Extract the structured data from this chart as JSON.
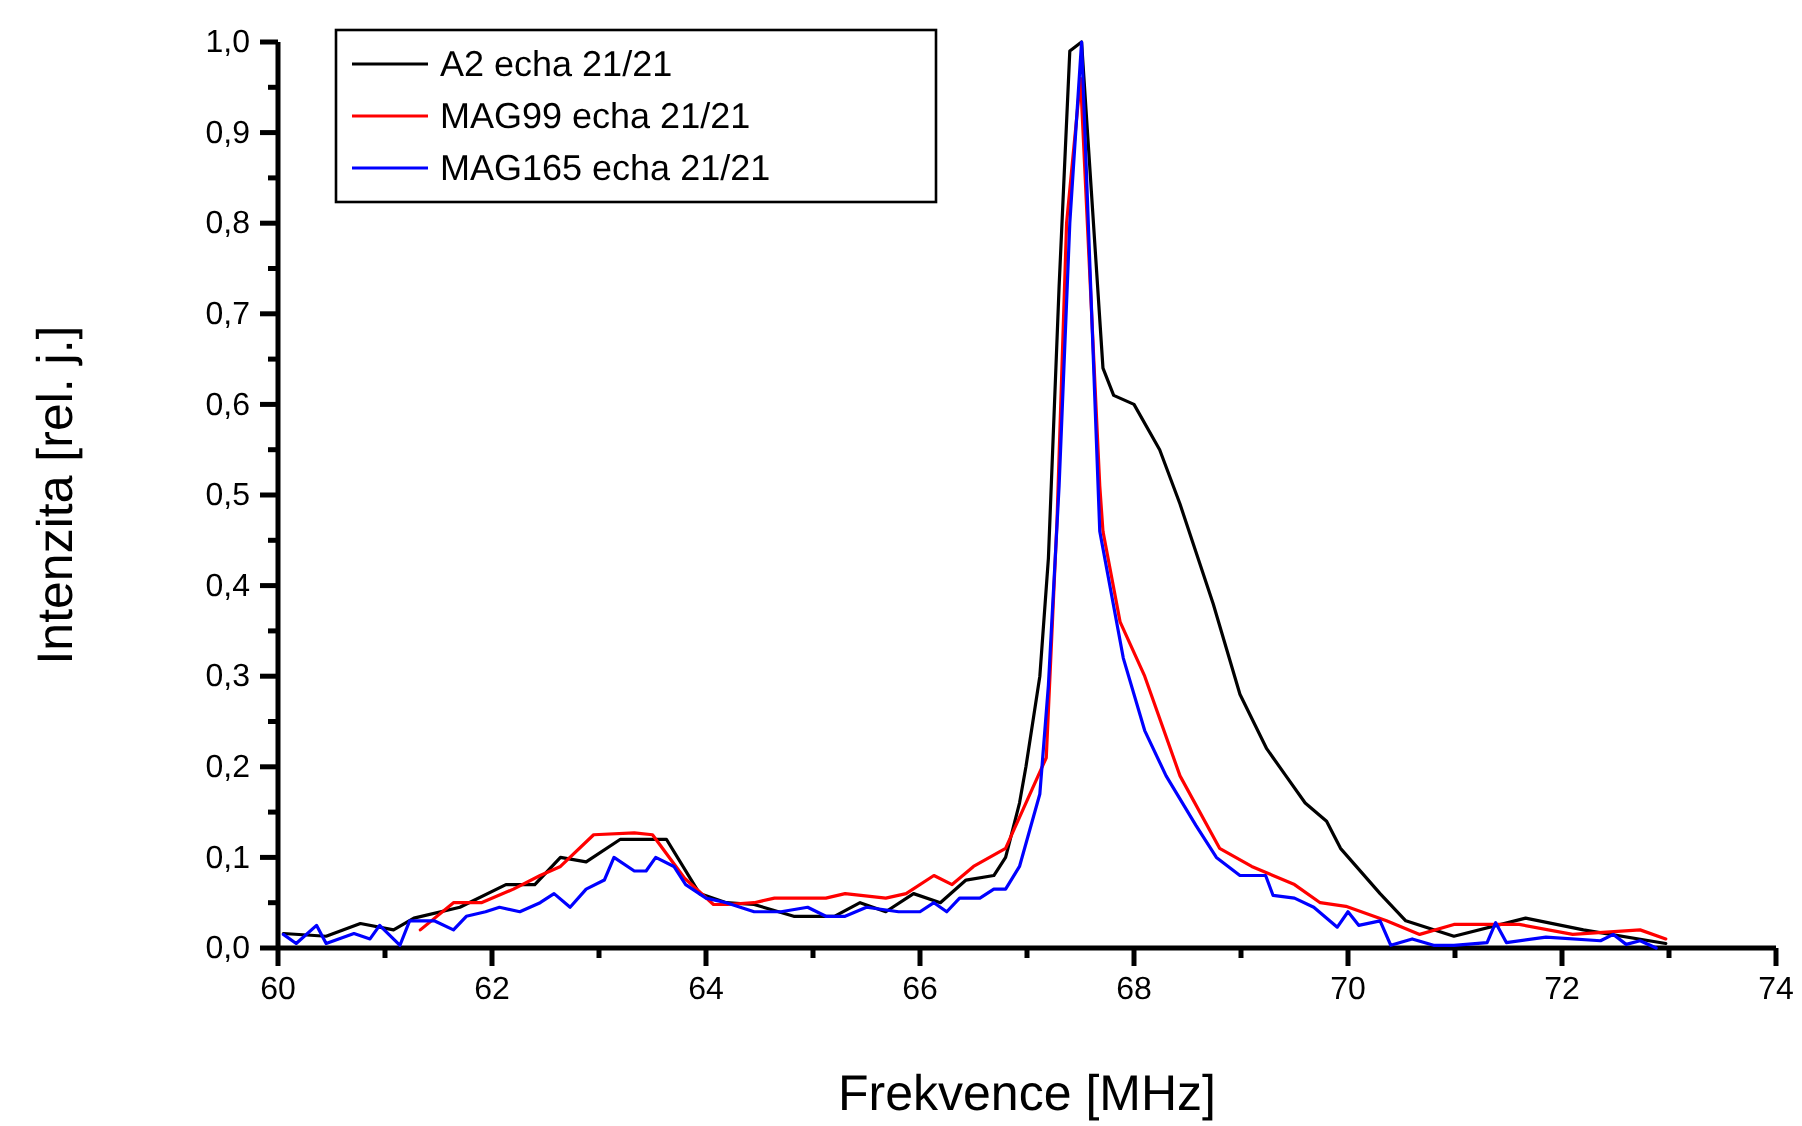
{
  "chart_data": {
    "type": "line",
    "xlabel": "Frekvence [MHz]",
    "ylabel": "Intenzita [rel. j.]",
    "xlim": [
      60,
      74
    ],
    "ylim": [
      0,
      1.0
    ],
    "xticks": [
      60,
      {
        "value": 61,
        "label": null
      },
      62,
      {
        "value": 63,
        "label": null
      },
      64,
      {
        "value": 65,
        "label": null
      },
      66,
      {
        "value": 67,
        "label": null
      },
      68,
      {
        "value": 69,
        "label": null
      },
      70,
      {
        "value": 71,
        "label": null
      },
      72,
      {
        "value": 73,
        "label": null
      },
      74
    ],
    "yticks": [
      {
        "value": 0,
        "label": "0,0"
      },
      {
        "value": 0.05,
        "label": null
      },
      {
        "value": 0.1,
        "label": "0,1"
      },
      {
        "value": 0.15,
        "label": null
      },
      {
        "value": 0.2,
        "label": "0,2"
      },
      {
        "value": 0.25,
        "label": null
      },
      {
        "value": 0.3,
        "label": "0,3"
      },
      {
        "value": 0.35,
        "label": null
      },
      {
        "value": 0.4,
        "label": "0,4"
      },
      {
        "value": 0.45,
        "label": null
      },
      {
        "value": 0.5,
        "label": "0,5"
      },
      {
        "value": 0.55,
        "label": null
      },
      {
        "value": 0.6,
        "label": "0,6"
      },
      {
        "value": 0.65,
        "label": null
      },
      {
        "value": 0.7,
        "label": "0,7"
      },
      {
        "value": 0.75,
        "label": null
      },
      {
        "value": 0.8,
        "label": "0,8"
      },
      {
        "value": 0.85,
        "label": null
      },
      {
        "value": 0.9,
        "label": "0,9"
      },
      {
        "value": 0.95,
        "label": null
      },
      {
        "value": 1.0,
        "label": "1,0"
      }
    ],
    "grid": false,
    "legend": "top left",
    "marker": "none",
    "line_style": "solid",
    "series": [
      {
        "name": "A2 echa 21/21",
        "color": "#000000",
        "x": [
          60.05,
          60.45,
          60.77,
          61.08,
          61.27,
          61.7,
          62.13,
          62.4,
          62.64,
          62.88,
          63.2,
          63.63,
          63.94,
          64.19,
          64.45,
          64.82,
          65.2,
          65.44,
          65.68,
          65.94,
          66.19,
          66.43,
          66.69,
          66.8,
          66.93,
          66.99,
          67.12,
          67.2,
          67.3,
          67.4,
          67.51,
          67.71,
          67.81,
          68.0,
          68.24,
          68.43,
          68.74,
          68.99,
          69.24,
          69.42,
          69.6,
          69.8,
          69.93,
          70.3,
          70.54,
          70.99,
          71.66,
          72.2,
          72.97
        ],
        "values": [
          0.016,
          0.013,
          0.027,
          0.02,
          0.033,
          0.045,
          0.07,
          0.07,
          0.1,
          0.095,
          0.12,
          0.12,
          0.06,
          0.05,
          0.048,
          0.035,
          0.035,
          0.05,
          0.04,
          0.06,
          0.05,
          0.075,
          0.08,
          0.1,
          0.16,
          0.2,
          0.3,
          0.43,
          0.73,
          0.99,
          1.0,
          0.64,
          0.61,
          0.6,
          0.55,
          0.49,
          0.38,
          0.28,
          0.22,
          0.19,
          0.16,
          0.14,
          0.11,
          0.06,
          0.03,
          0.013,
          0.033,
          0.02,
          0.005
        ]
      },
      {
        "name": "MAG99 echa 21/21",
        "color": "#ff0000",
        "x": [
          61.33,
          61.64,
          61.9,
          62.2,
          62.45,
          62.64,
          62.95,
          63.33,
          63.5,
          63.8,
          64.07,
          64.2,
          64.45,
          64.64,
          65.12,
          65.3,
          65.68,
          65.87,
          66.13,
          66.3,
          66.5,
          66.8,
          67.18,
          67.28,
          67.37,
          67.5,
          67.68,
          67.71,
          67.87,
          68.1,
          68.43,
          68.8,
          69.1,
          69.5,
          69.74,
          69.98,
          70.36,
          70.67,
          70.99,
          71.6,
          72.1,
          72.73,
          72.97
        ],
        "values": [
          0.02,
          0.05,
          0.05,
          0.065,
          0.08,
          0.09,
          0.125,
          0.127,
          0.125,
          0.077,
          0.048,
          0.048,
          0.05,
          0.055,
          0.055,
          0.06,
          0.055,
          0.06,
          0.08,
          0.07,
          0.09,
          0.11,
          0.21,
          0.47,
          0.8,
          0.96,
          0.51,
          0.46,
          0.36,
          0.3,
          0.19,
          0.11,
          0.09,
          0.07,
          0.05,
          0.046,
          0.03,
          0.015,
          0.026,
          0.026,
          0.015,
          0.02,
          0.01
        ]
      },
      {
        "name": "MAG165 echa 21/21",
        "color": "#0000ff",
        "x": [
          60.05,
          60.17,
          60.36,
          60.45,
          60.71,
          60.86,
          60.95,
          61.14,
          61.23,
          61.46,
          61.64,
          61.76,
          61.94,
          62.07,
          62.26,
          62.45,
          62.58,
          62.73,
          62.88,
          63.05,
          63.14,
          63.33,
          63.44,
          63.53,
          63.7,
          63.81,
          64.0,
          64.19,
          64.45,
          64.7,
          64.95,
          65.12,
          65.3,
          65.5,
          65.8,
          66.0,
          66.13,
          66.25,
          66.37,
          66.56,
          66.69,
          66.8,
          66.93,
          67.12,
          67.2,
          67.3,
          67.4,
          67.51,
          67.68,
          67.9,
          68.1,
          68.3,
          68.58,
          68.77,
          68.99,
          69.23,
          69.3,
          69.5,
          69.68,
          69.9,
          70.0,
          70.1,
          70.3,
          70.4,
          70.6,
          70.8,
          70.99,
          71.3,
          71.38,
          71.48,
          71.85,
          72.36,
          72.48,
          72.6,
          72.73,
          72.88
        ],
        "values": [
          0.015,
          0.005,
          0.025,
          0.005,
          0.016,
          0.01,
          0.025,
          0.003,
          0.03,
          0.03,
          0.02,
          0.035,
          0.04,
          0.045,
          0.04,
          0.05,
          0.06,
          0.045,
          0.065,
          0.075,
          0.1,
          0.085,
          0.085,
          0.1,
          0.09,
          0.07,
          0.055,
          0.05,
          0.04,
          0.04,
          0.045,
          0.035,
          0.035,
          0.045,
          0.04,
          0.04,
          0.05,
          0.04,
          0.055,
          0.055,
          0.065,
          0.065,
          0.09,
          0.17,
          0.29,
          0.51,
          0.8,
          1.0,
          0.46,
          0.32,
          0.24,
          0.19,
          0.135,
          0.1,
          0.08,
          0.08,
          0.058,
          0.055,
          0.045,
          0.023,
          0.04,
          0.025,
          0.03,
          0.003,
          0.01,
          0.003,
          0.003,
          0.006,
          0.028,
          0.006,
          0.012,
          0.008,
          0.015,
          0.004,
          0.008,
          0
        ]
      }
    ]
  }
}
